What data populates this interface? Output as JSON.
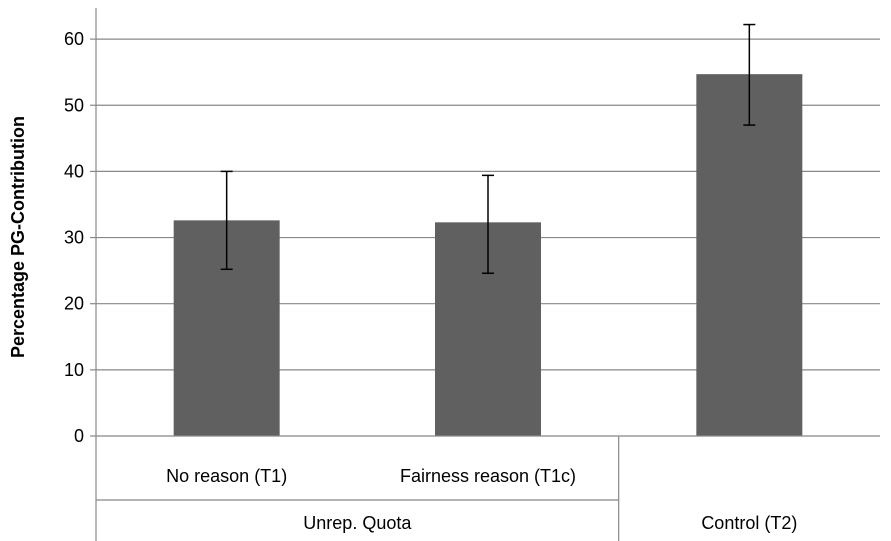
{
  "chart_data": {
    "type": "bar",
    "ylabel": "Percentage PG-Contribution",
    "ylim": [
      0,
      65
    ],
    "yticks": [
      0,
      10,
      20,
      30,
      40,
      50,
      60
    ],
    "grid": true,
    "categories": [
      "No reason (T1)",
      "Fairness reason (T1c)",
      ""
    ],
    "groups": [
      {
        "label": "Unrep. Quota",
        "span": [
          0,
          1
        ]
      },
      {
        "label": "Control (T2)",
        "span": [
          2,
          2
        ]
      }
    ],
    "values": [
      32.6,
      32.3,
      54.7
    ],
    "error_low": [
      25.2,
      24.6,
      47.0
    ],
    "error_high": [
      40.0,
      39.4,
      62.2
    ],
    "colors": {
      "bar": "#606060",
      "grid": "#888888",
      "axis": "#888888",
      "error_bar": "#000000"
    }
  }
}
